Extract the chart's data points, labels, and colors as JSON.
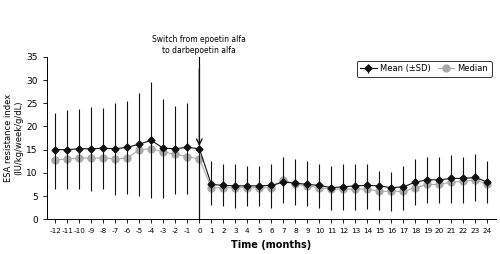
{
  "annotation_text": "Switch from epoetin alfa\nto darbepoetin alfa",
  "xlabel": "Time (months)",
  "ylabel": "ESA resistance index\n(IU/kg/week/g/dL)",
  "ylim": [
    0,
    35
  ],
  "yticks": [
    0,
    5,
    10,
    15,
    20,
    25,
    30,
    35
  ],
  "time_points": [
    -12,
    -11,
    -10,
    -9,
    -8,
    -7,
    -6,
    -5,
    -4,
    -3,
    -2,
    -1,
    0,
    1,
    2,
    3,
    4,
    5,
    6,
    7,
    8,
    9,
    10,
    11,
    12,
    13,
    14,
    15,
    16,
    17,
    18,
    19,
    20,
    21,
    22,
    23,
    24
  ],
  "mean_values": [
    15.0,
    15.0,
    15.2,
    15.2,
    15.3,
    15.2,
    15.5,
    16.2,
    17.0,
    15.3,
    15.2,
    15.5,
    15.2,
    7.5,
    7.3,
    7.2,
    7.2,
    7.2,
    7.3,
    8.0,
    7.8,
    7.5,
    7.3,
    6.8,
    7.0,
    7.2,
    7.3,
    7.2,
    6.8,
    7.0,
    8.0,
    8.5,
    8.5,
    8.8,
    8.8,
    9.0,
    8.0
  ],
  "mean_upper": [
    23.0,
    23.5,
    23.8,
    24.2,
    24.0,
    25.0,
    25.5,
    27.2,
    29.5,
    26.0,
    24.5,
    25.0,
    33.5,
    12.5,
    12.0,
    12.0,
    11.5,
    11.5,
    12.0,
    13.5,
    13.0,
    12.5,
    12.0,
    11.5,
    11.8,
    11.8,
    12.0,
    10.5,
    10.2,
    11.5,
    13.0,
    13.5,
    13.5,
    13.8,
    13.5,
    14.0,
    12.5
  ],
  "mean_lower": [
    6.5,
    6.5,
    6.5,
    6.0,
    6.5,
    5.2,
    5.5,
    5.0,
    4.5,
    4.5,
    5.5,
    5.5,
    0.2,
    3.0,
    2.8,
    2.5,
    2.8,
    2.8,
    2.5,
    3.5,
    3.0,
    2.8,
    2.5,
    2.0,
    2.0,
    2.0,
    2.2,
    2.0,
    1.8,
    2.0,
    3.0,
    3.5,
    3.5,
    3.5,
    3.5,
    4.0,
    3.5
  ],
  "median_values": [
    12.8,
    13.0,
    13.2,
    13.2,
    13.2,
    13.0,
    13.2,
    15.0,
    15.2,
    14.5,
    14.0,
    13.5,
    13.0,
    6.8,
    6.8,
    6.8,
    6.8,
    6.8,
    6.8,
    8.5,
    7.5,
    7.2,
    6.8,
    6.5,
    6.5,
    6.5,
    6.5,
    6.0,
    6.0,
    6.0,
    6.8,
    7.5,
    7.5,
    8.0,
    8.2,
    8.5,
    7.5
  ],
  "mean_color": "#111111",
  "median_color": "#aaaaaa",
  "figsize": [
    5.0,
    2.54
  ],
  "dpi": 100
}
